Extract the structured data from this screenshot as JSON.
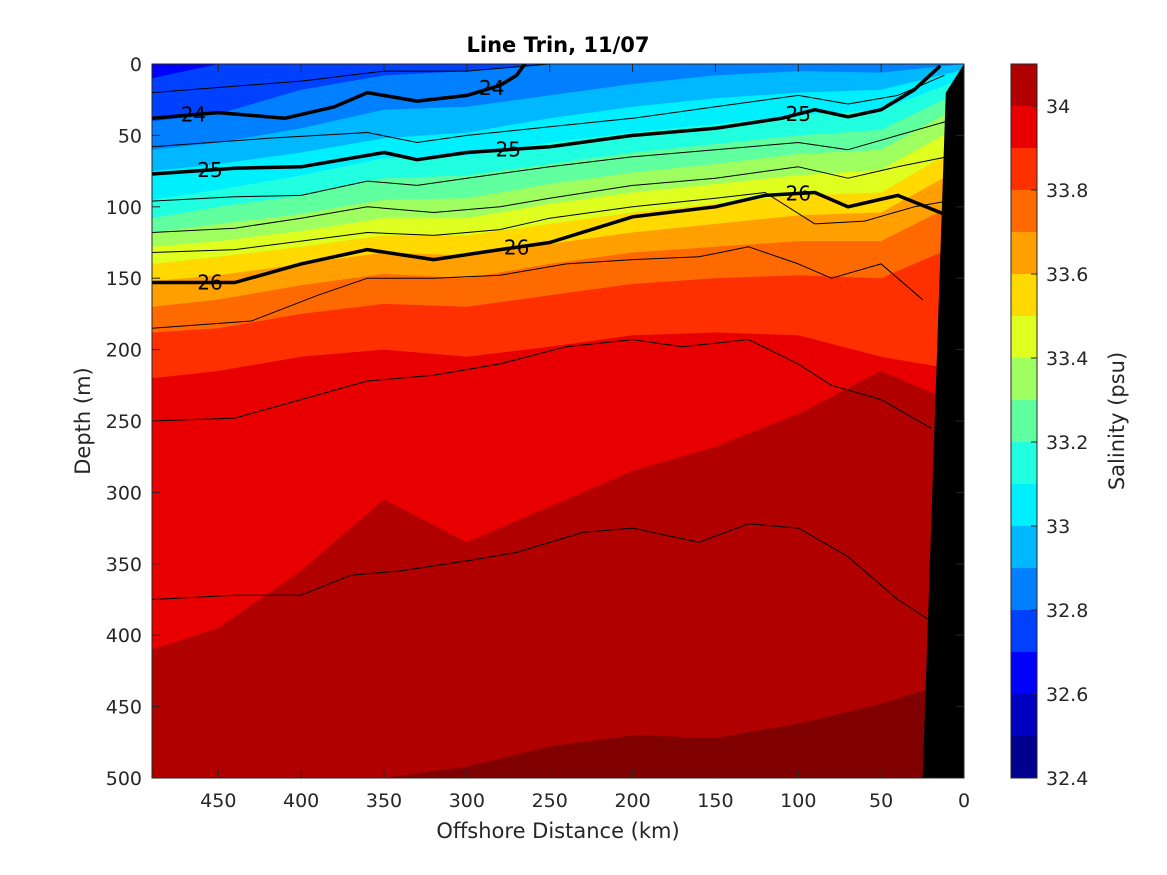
{
  "chart_data": {
    "type": "contour",
    "title": "Line Trin, 11/07",
    "xlabel": "Offshore Distance (km)",
    "ylabel": "Depth (m)",
    "xlim": [
      490,
      0
    ],
    "ylim": [
      0,
      500
    ],
    "x_reversed": true,
    "y_reversed": true,
    "x_ticks": [
      "450",
      "400",
      "350",
      "300",
      "250",
      "200",
      "150",
      "100",
      "50",
      "0"
    ],
    "y_ticks": [
      "0",
      "50",
      "100",
      "150",
      "200",
      "250",
      "300",
      "350",
      "400",
      "450",
      "500"
    ],
    "colorbar": {
      "label": "Salinity (psu)",
      "range": [
        32.4,
        34.1
      ],
      "ticks": [
        "32.4",
        "32.6",
        "32.8",
        "33",
        "33.2",
        "33.4",
        "33.6",
        "33.8",
        "34"
      ]
    },
    "salinity_levels": [
      32.4,
      32.5,
      32.6,
      32.7,
      32.8,
      32.9,
      33.0,
      33.1,
      33.2,
      33.3,
      33.4,
      33.5,
      33.6,
      33.7,
      33.8,
      33.9,
      34.0,
      34.1
    ],
    "salinity_colors": [
      "#00008f",
      "#0000c0",
      "#0000ff",
      "#0040ff",
      "#0080ff",
      "#00b8ff",
      "#00efff",
      "#20ffdf",
      "#60ff9f",
      "#9fff60",
      "#dfff20",
      "#ffd900",
      "#ffa000",
      "#ff6a00",
      "#ff3000",
      "#e80000",
      "#b00000",
      "#800000"
    ],
    "distance_km": [
      490,
      450,
      400,
      350,
      300,
      250,
      200,
      150,
      100,
      50,
      10
    ],
    "isohalines_depth_m": [
      {
        "level": 32.5,
        "depth": [
          0,
          0,
          0,
          0,
          0,
          0,
          0,
          0,
          0,
          0,
          0
        ]
      },
      {
        "level": 32.6,
        "depth": [
          0,
          0,
          0,
          0,
          0,
          0,
          0,
          0,
          0,
          0,
          0
        ]
      },
      {
        "level": 32.7,
        "depth": [
          10,
          0,
          0,
          0,
          0,
          0,
          0,
          0,
          0,
          0,
          0
        ]
      },
      {
        "level": 32.8,
        "depth": [
          40,
          35,
          18,
          8,
          5,
          0,
          0,
          0,
          0,
          0,
          0
        ]
      },
      {
        "level": 32.9,
        "depth": [
          60,
          55,
          45,
          32,
          30,
          22,
          14,
          8,
          5,
          6,
          0
        ]
      },
      {
        "level": 33.0,
        "depth": [
          75,
          70,
          62,
          52,
          48,
          38,
          30,
          24,
          20,
          18,
          4
        ]
      },
      {
        "level": 33.1,
        "depth": [
          95,
          88,
          78,
          66,
          64,
          55,
          48,
          42,
          36,
          32,
          10
        ]
      },
      {
        "level": 33.2,
        "depth": [
          108,
          100,
          92,
          80,
          78,
          70,
          62,
          56,
          50,
          46,
          18
        ]
      },
      {
        "level": 33.3,
        "depth": [
          118,
          112,
          105,
          95,
          94,
          84,
          76,
          70,
          63,
          60,
          28
        ]
      },
      {
        "level": 33.4,
        "depth": [
          128,
          124,
          117,
          108,
          108,
          98,
          90,
          84,
          78,
          74,
          42
        ]
      },
      {
        "level": 33.5,
        "depth": [
          140,
          135,
          128,
          120,
          120,
          112,
          104,
          98,
          92,
          90,
          56
        ]
      },
      {
        "level": 33.6,
        "depth": [
          152,
          148,
          140,
          132,
          134,
          126,
          118,
          112,
          106,
          104,
          72
        ]
      },
      {
        "level": 33.7,
        "depth": [
          170,
          165,
          155,
          147,
          150,
          140,
          132,
          128,
          124,
          124,
          95
        ]
      },
      {
        "level": 33.8,
        "depth": [
          188,
          185,
          175,
          168,
          170,
          162,
          154,
          150,
          148,
          150,
          125
        ]
      },
      {
        "level": 33.9,
        "depth": [
          220,
          215,
          205,
          200,
          205,
          198,
          190,
          188,
          190,
          205,
          215
        ]
      },
      {
        "level": 34.0,
        "depth": [
          410,
          395,
          355,
          305,
          335,
          310,
          285,
          268,
          245,
          215,
          240
        ]
      },
      {
        "level": 34.1,
        "depth": [
          510,
          510,
          505,
          500,
          492,
          478,
          470,
          472,
          462,
          448,
          430
        ]
      }
    ],
    "density_contours": [
      {
        "label": "24",
        "bold": true,
        "distance_km": [
          490,
          450,
          410,
          380,
          360,
          330,
          300,
          280,
          270,
          265
        ],
        "depth_m": [
          38,
          34,
          38,
          30,
          20,
          26,
          22,
          15,
          8,
          0
        ],
        "label_positions_km": [
          465,
          285
        ]
      },
      {
        "label": "25",
        "bold": true,
        "distance_km": [
          490,
          440,
          400,
          350,
          330,
          300,
          250,
          200,
          150,
          110,
          90,
          70,
          50,
          30,
          15
        ],
        "depth_m": [
          77,
          73,
          72,
          62,
          67,
          62,
          58,
          50,
          45,
          38,
          32,
          37,
          32,
          18,
          2
        ],
        "label_positions_km": [
          455,
          275,
          100
        ]
      },
      {
        "label": "26",
        "bold": true,
        "distance_km": [
          490,
          440,
          400,
          360,
          320,
          280,
          250,
          200,
          150,
          120,
          90,
          70,
          40,
          10
        ],
        "depth_m": [
          153,
          153,
          140,
          130,
          137,
          130,
          125,
          107,
          100,
          92,
          90,
          100,
          92,
          106
        ],
        "label_positions_km": [
          455,
          270,
          100
        ]
      },
      {
        "label": "",
        "bold": false,
        "distance_km": [
          490,
          400,
          350,
          300,
          250,
          200,
          150,
          100,
          50,
          10
        ],
        "depth_m": [
          20,
          12,
          5,
          5,
          0,
          0,
          0,
          0,
          0,
          0
        ]
      },
      {
        "label": "",
        "bold": false,
        "distance_km": [
          490,
          420,
          360,
          330,
          300,
          250,
          200,
          150,
          100,
          70,
          40,
          12
        ],
        "depth_m": [
          58,
          52,
          48,
          55,
          50,
          44,
          38,
          30,
          22,
          28,
          22,
          8
        ]
      },
      {
        "label": "",
        "bold": false,
        "distance_km": [
          490,
          440,
          400,
          360,
          330,
          300,
          250,
          200,
          150,
          100,
          70,
          40,
          10
        ],
        "depth_m": [
          96,
          93,
          92,
          82,
          85,
          80,
          72,
          65,
          60,
          55,
          60,
          50,
          40
        ]
      },
      {
        "label": "",
        "bold": false,
        "distance_km": [
          490,
          440,
          400,
          360,
          320,
          280,
          250,
          200,
          150,
          100,
          70,
          40,
          10
        ],
        "depth_m": [
          118,
          115,
          108,
          100,
          104,
          100,
          94,
          85,
          80,
          72,
          80,
          72,
          65
        ]
      },
      {
        "label": "",
        "bold": false,
        "distance_km": [
          490,
          440,
          400,
          360,
          320,
          280,
          250,
          200,
          150,
          120,
          90,
          60,
          30,
          10
        ],
        "depth_m": [
          132,
          130,
          124,
          118,
          120,
          116,
          108,
          100,
          94,
          90,
          112,
          110,
          100,
          96
        ]
      },
      {
        "label": "",
        "bold": false,
        "distance_km": [
          490,
          430,
          390,
          360,
          320,
          280,
          240,
          200,
          160,
          130,
          100,
          80,
          50,
          25
        ],
        "depth_m": [
          185,
          180,
          162,
          150,
          150,
          148,
          140,
          137,
          135,
          128,
          140,
          150,
          140,
          165
        ]
      },
      {
        "label": "",
        "bold": false,
        "distance_km": [
          490,
          440,
          400,
          360,
          320,
          280,
          240,
          200,
          170,
          130,
          100,
          80,
          50,
          20
        ],
        "depth_m": [
          250,
          248,
          235,
          222,
          218,
          210,
          198,
          193,
          198,
          193,
          210,
          225,
          235,
          255
        ]
      },
      {
        "label": "",
        "bold": false,
        "distance_km": [
          490,
          440,
          400,
          370,
          340,
          300,
          270,
          230,
          200,
          160,
          130,
          100,
          70,
          40,
          20
        ],
        "depth_m": [
          375,
          372,
          372,
          358,
          355,
          348,
          342,
          328,
          325,
          335,
          322,
          325,
          345,
          375,
          390
        ]
      }
    ],
    "bathymetry_mask": {
      "distance_km": [
        11,
        0,
        0,
        25
      ],
      "depth_m": [
        20,
        0,
        500,
        500
      ],
      "color": "#000000"
    }
  }
}
